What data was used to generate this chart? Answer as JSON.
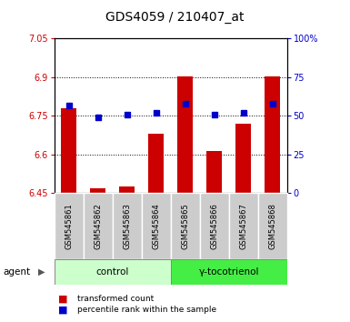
{
  "title": "GDS4059 / 210407_at",
  "samples": [
    "GSM545861",
    "GSM545862",
    "GSM545863",
    "GSM545864",
    "GSM545865",
    "GSM545866",
    "GSM545867",
    "GSM545868"
  ],
  "red_values": [
    6.78,
    6.47,
    6.475,
    6.68,
    6.905,
    6.615,
    6.72,
    6.905
  ],
  "blue_values": [
    57,
    49,
    51,
    52,
    58,
    51,
    52,
    58
  ],
  "ymin": 6.45,
  "ymax": 7.05,
  "y2min": 0,
  "y2max": 100,
  "yticks": [
    6.45,
    6.6,
    6.75,
    6.9,
    7.05
  ],
  "ytick_labels": [
    "6.45",
    "6.6",
    "6.75",
    "6.9",
    "7.05"
  ],
  "y2ticks": [
    0,
    25,
    50,
    75,
    100
  ],
  "y2tick_labels": [
    "0",
    "25",
    "50",
    "75",
    "100%"
  ],
  "gridlines": [
    6.6,
    6.75,
    6.9
  ],
  "bar_color": "#cc0000",
  "dot_color": "#0000cc",
  "control_color": "#ccffcc",
  "treatment_color": "#44ee44",
  "sample_box_color": "#cccccc",
  "group_label_control": "control",
  "group_label_treatment": "γ-tocotrienol",
  "agent_label": "agent",
  "legend_red": "transformed count",
  "legend_blue": "percentile rank within the sample",
  "bar_width": 0.55,
  "title_fontsize": 10,
  "tick_fontsize": 7,
  "label_fontsize": 7.5
}
